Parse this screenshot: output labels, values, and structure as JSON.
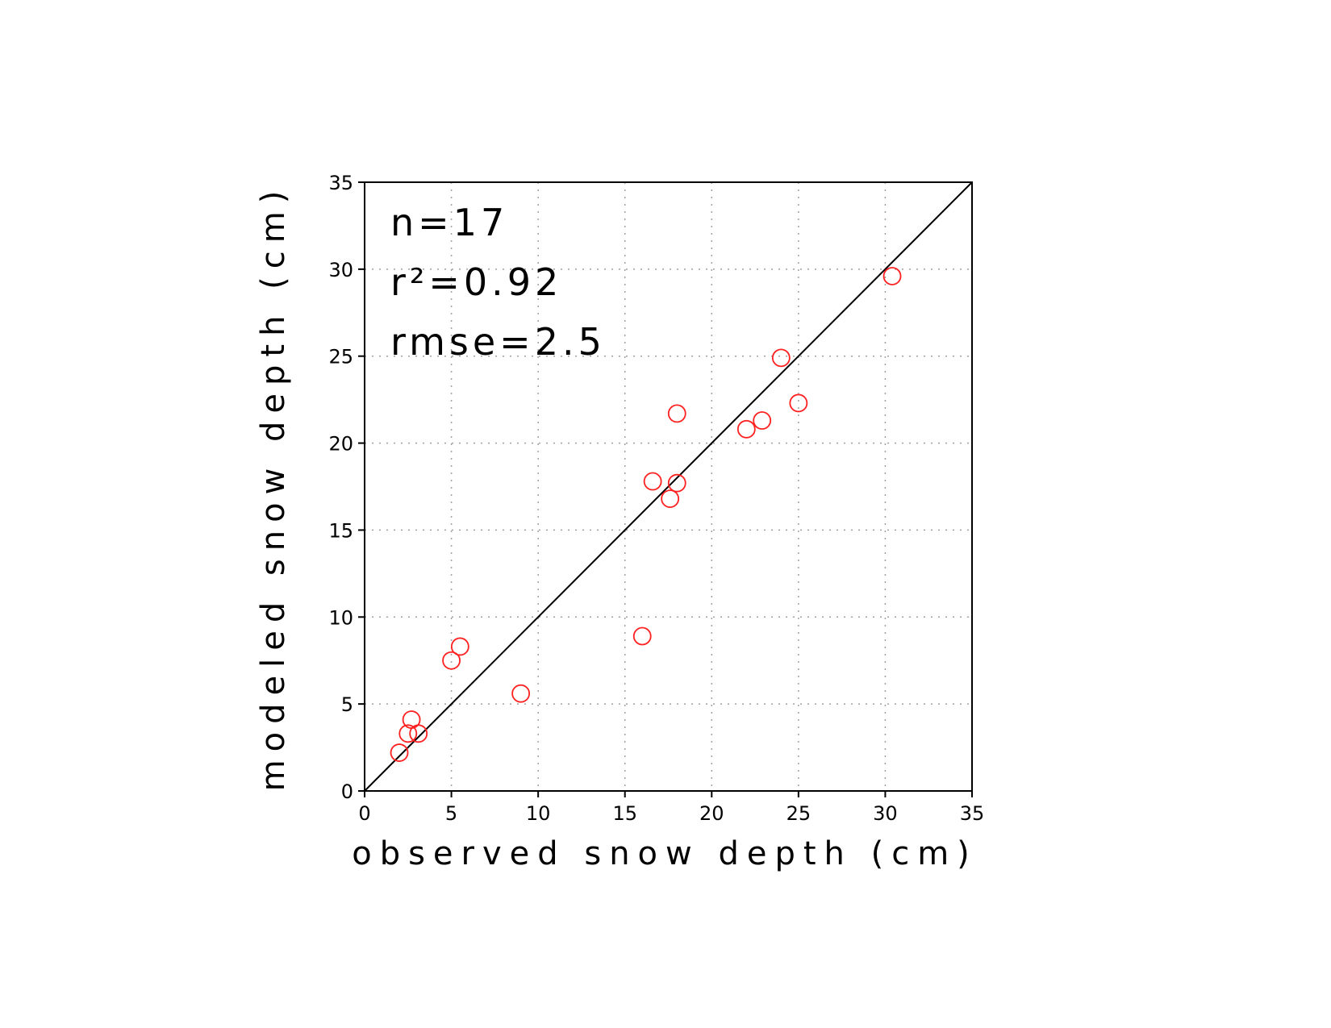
{
  "chart_data": {
    "type": "scatter",
    "xlabel": "observed snow depth (cm)",
    "ylabel": "modeled snow depth (cm)",
    "xlim": [
      0,
      35
    ],
    "ylim": [
      0,
      35
    ],
    "xticks": [
      "0",
      "5",
      "10",
      "15",
      "20",
      "25",
      "30",
      "35"
    ],
    "yticks": [
      "0",
      "5",
      "10",
      "15",
      "20",
      "25",
      "30",
      "35"
    ],
    "grid": true,
    "reference_line": "1:1",
    "marker": "open-circle",
    "marker_color": "#ff2020",
    "annotations": {
      "n": "n=17",
      "r2": "r²=0.92",
      "rmse": "rmse=2.5"
    },
    "points": [
      {
        "x": 2.0,
        "y": 2.2
      },
      {
        "x": 2.5,
        "y": 3.3
      },
      {
        "x": 2.7,
        "y": 4.1
      },
      {
        "x": 3.1,
        "y": 3.3
      },
      {
        "x": 5.0,
        "y": 7.5
      },
      {
        "x": 5.5,
        "y": 8.3
      },
      {
        "x": 9.0,
        "y": 5.6
      },
      {
        "x": 16.0,
        "y": 8.9
      },
      {
        "x": 16.6,
        "y": 17.8
      },
      {
        "x": 17.6,
        "y": 16.8
      },
      {
        "x": 18.0,
        "y": 17.7
      },
      {
        "x": 18.0,
        "y": 21.7
      },
      {
        "x": 22.0,
        "y": 20.8
      },
      {
        "x": 22.9,
        "y": 21.3
      },
      {
        "x": 24.0,
        "y": 24.9
      },
      {
        "x": 25.0,
        "y": 22.3
      },
      {
        "x": 30.4,
        "y": 29.6
      }
    ]
  }
}
